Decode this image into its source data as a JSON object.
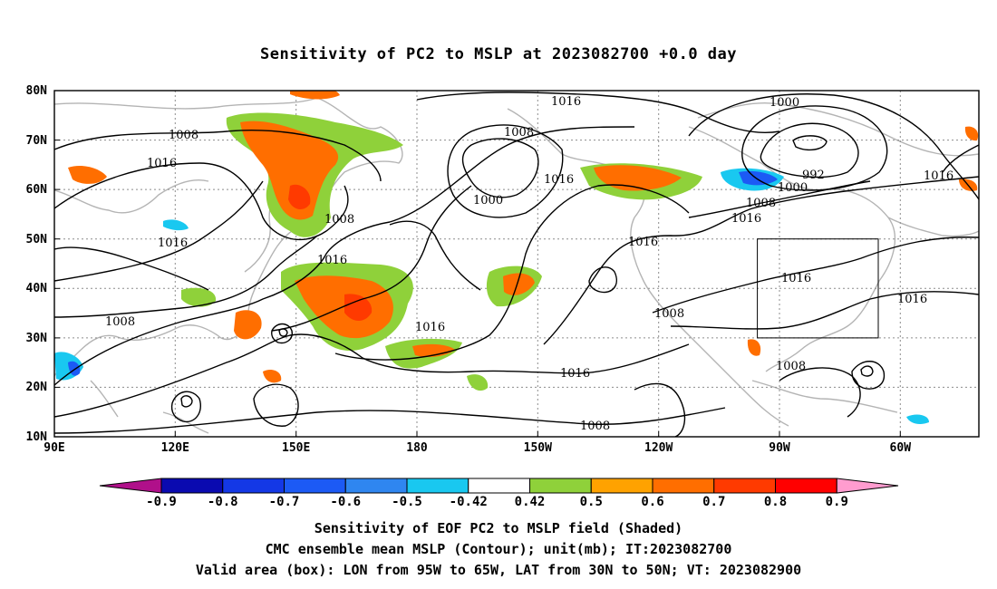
{
  "title": "Sensitivity of PC2 to MSLP at 2023082700 +0.0 day",
  "axes": {
    "lat_labels": [
      "80N",
      "70N",
      "60N",
      "50N",
      "40N",
      "30N",
      "20N",
      "10N"
    ],
    "lon_labels": [
      "90E",
      "120E",
      "150E",
      "180",
      "150W",
      "120W",
      "90W",
      "60W"
    ]
  },
  "contour_labels": [
    "1016",
    "1008",
    "1016",
    "1008",
    "1000",
    "1016",
    "1000",
    "992",
    "1000",
    "1016",
    "1008",
    "1016",
    "1008",
    "1016",
    "1016",
    "1016",
    "1008",
    "1016",
    "1008",
    "1016",
    "1016",
    "1008",
    "1008",
    "1016"
  ],
  "colorbar": {
    "labels": [
      "-0.9",
      "-0.8",
      "-0.7",
      "-0.6",
      "-0.5",
      "-0.42",
      "0.42",
      "0.5",
      "0.6",
      "0.7",
      "0.8",
      "0.9"
    ],
    "colors": [
      "#b0108a",
      "#0a0ab0",
      "#1438e6",
      "#1c5af5",
      "#2f86f0",
      "#19c8f0",
      "#ffffff",
      "#8fd13a",
      "#ffa200",
      "#ff6e00",
      "#ff3a00",
      "#ff0000",
      "#ff9ccf"
    ]
  },
  "captions": {
    "line1": "Sensitivity of EOF PC2 to MSLP field (Shaded)",
    "line2": "CMC ensemble mean MSLP (Contour); unit(mb); IT:2023082700",
    "line3": "Valid area (box): LON from 95W to 65W, LAT from 30N to 50N; VT: 2023082900"
  },
  "valid_area": {
    "lon_min": -95,
    "lon_max": -65,
    "lat_min": 30,
    "lat_max": 50
  }
}
